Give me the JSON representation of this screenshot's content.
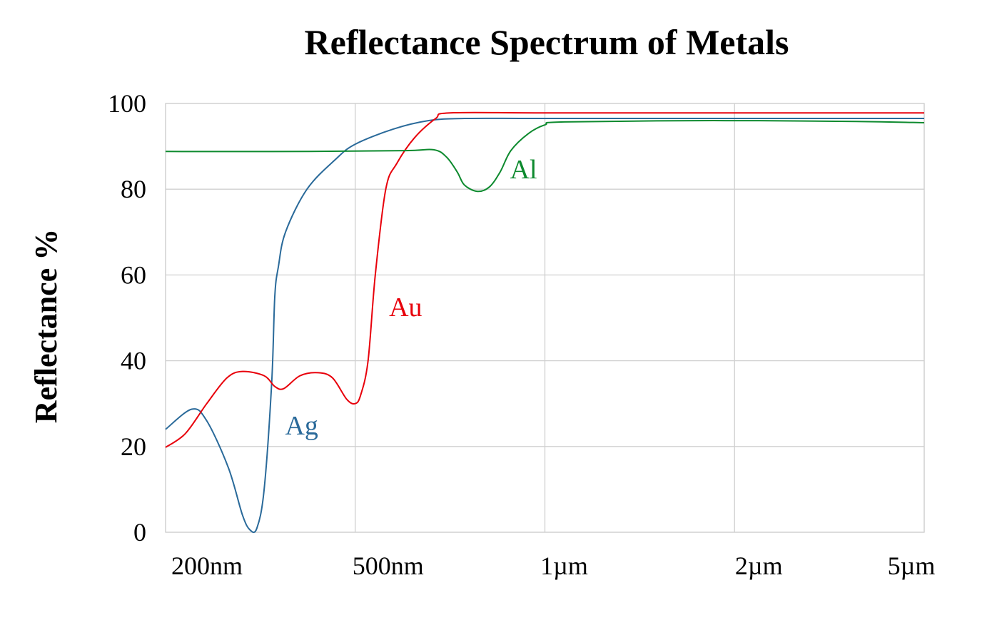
{
  "chart_data": {
    "type": "line",
    "title": "Reflectance Spectrum of Metals",
    "xlabel": "",
    "ylabel": "Reflectance %",
    "x_scale": "log",
    "x_unit": "nm",
    "xlim": [
      200,
      5000
    ],
    "ylim": [
      0,
      100
    ],
    "grid": true,
    "x_ticks": [
      200,
      500,
      1000,
      2000,
      5000
    ],
    "x_tick_labels": [
      "200nm",
      "500nm",
      "1µm",
      "2µm",
      "5µm"
    ],
    "y_ticks": [
      0,
      20,
      40,
      60,
      80,
      100
    ],
    "y_tick_labels": [
      "0",
      "20",
      "40",
      "60",
      "80",
      "100"
    ],
    "series": [
      {
        "name": "Ag",
        "color": "#2a6a9a",
        "label_at": [
          386,
          25
        ],
        "x": [
          200,
          227,
          244,
          271,
          290,
          301,
          311,
          322,
          334,
          339,
          345,
          357,
          396,
          455,
          500,
          574,
          654,
          745,
          1000,
          2000,
          5000
        ],
        "y": [
          24,
          28.7,
          26,
          15,
          4,
          0.5,
          1,
          10,
          35,
          55,
          62,
          70,
          80,
          87,
          90.5,
          94,
          96,
          96.5,
          96.5,
          96.5,
          96.5
        ]
      },
      {
        "name": "Au",
        "color": "#e8000b",
        "label_at": [
          601,
          52.6
        ],
        "x": [
          200,
          220,
          244,
          269,
          290,
          322,
          339,
          354,
          383,
          418,
          448,
          480,
          500,
          510,
          524,
          538,
          559,
          582,
          621,
          671,
          707,
          1000,
          2000,
          5000
        ],
        "y": [
          19.8,
          23,
          30,
          36,
          37.5,
          36.5,
          34,
          33.5,
          36.5,
          37.2,
          36,
          31,
          30,
          32,
          40,
          60,
          80,
          86,
          92,
          96.5,
          97.8,
          97.8,
          97.8,
          97.8
        ]
      },
      {
        "name": "Al",
        "color": "#0d8a2e",
        "label_at": [
          925,
          84.7
        ],
        "x": [
          200,
          400,
          600,
          666,
          698,
          726,
          745,
          781,
          816,
          849,
          883,
          942,
          1000,
          1073,
          1854,
          3604,
          5000
        ],
        "y": [
          88.8,
          88.8,
          89,
          89.2,
          87.5,
          84,
          81,
          79.5,
          80.5,
          84,
          89,
          93,
          95,
          95.7,
          96,
          95.8,
          95.5
        ]
      }
    ]
  }
}
